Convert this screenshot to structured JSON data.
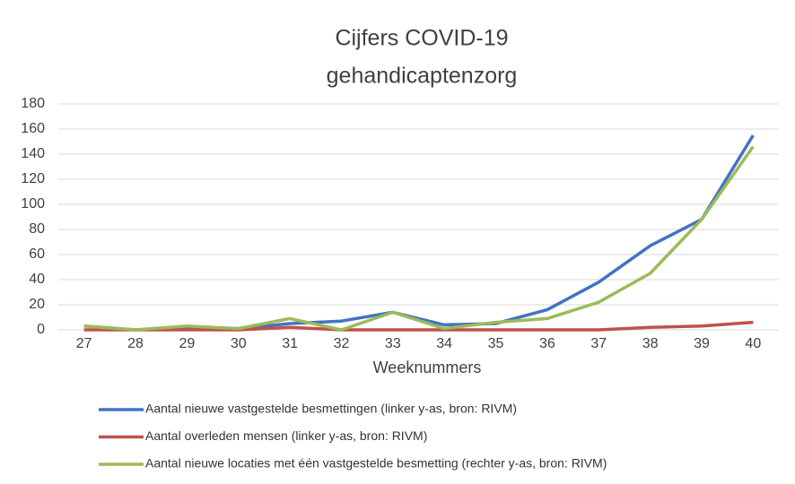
{
  "chart_data": {
    "type": "line",
    "title": [
      "Cijfers  COVID-19",
      "gehandicaptenzorg"
    ],
    "x_label": "Weeknummers",
    "categories": [
      "27",
      "28",
      "29",
      "30",
      "31",
      "32",
      "33",
      "34",
      "35",
      "36",
      "37",
      "38",
      "39",
      "40"
    ],
    "series": [
      {
        "name": "Aantal nieuwe vastgestelde besmettingen  (linker y-as, bron: RIVM)",
        "color": "#4472c4",
        "values": [
          3,
          0,
          2,
          1,
          5,
          7,
          14,
          4,
          5,
          16,
          38,
          67,
          88,
          155
        ]
      },
      {
        "name": "Aantal overleden mensen  (linker y-as, bron: RIVM)",
        "color": "#c0504d",
        "values": [
          0,
          0,
          0,
          0,
          2,
          0,
          0,
          0,
          0,
          0,
          0,
          2,
          3,
          6
        ]
      },
      {
        "name": "Aantal nieuwe locaties met één vastgestelde besmetting  (rechter y-as, bron: RIVM)",
        "color": "#9bbb59",
        "values": [
          3,
          0,
          3,
          1,
          9,
          0,
          14,
          1,
          6,
          9,
          22,
          45,
          88,
          146
        ]
      }
    ],
    "ylim": [
      0,
      180
    ],
    "yticks": [
      0,
      20,
      40,
      60,
      80,
      100,
      120,
      140,
      160,
      180
    ],
    "grid": true
  }
}
